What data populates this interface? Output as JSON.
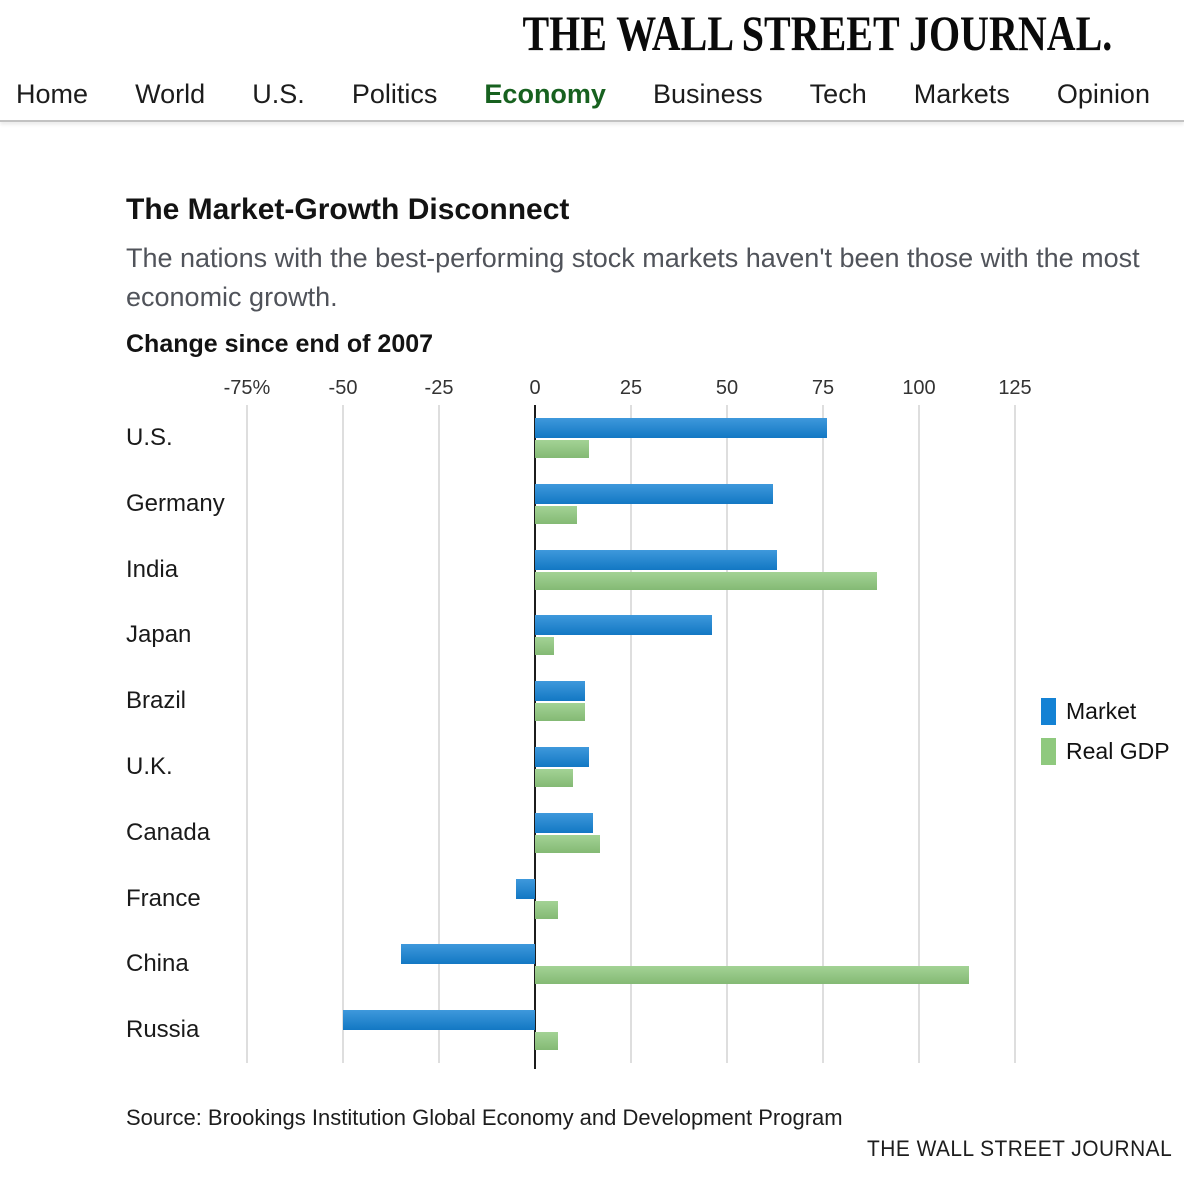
{
  "masthead": "THE WALL STREET JOURNAL.",
  "nav": {
    "items": [
      {
        "label": "Home",
        "active": false
      },
      {
        "label": "World",
        "active": false
      },
      {
        "label": "U.S.",
        "active": false
      },
      {
        "label": "Politics",
        "active": false
      },
      {
        "label": "Economy",
        "active": true
      },
      {
        "label": "Business",
        "active": false
      },
      {
        "label": "Tech",
        "active": false
      },
      {
        "label": "Markets",
        "active": false
      },
      {
        "label": "Opinion",
        "active": false
      }
    ],
    "active_color": "#17611f"
  },
  "chart": {
    "title": "The Market-Growth Disconnect",
    "subtitle": "The nations with the best-performing stock markets haven't been those with the most economic growth.",
    "axis_note": "Change since end of 2007",
    "source": "Source: Brookings Institution Global Economy and Development Program",
    "footer_brand": "THE WALL STREET JOURNAL"
  },
  "chart_data": {
    "type": "bar",
    "orientation": "horizontal",
    "title": "The Market-Growth Disconnect",
    "subtitle": "The nations with the best-performing stock markets haven't been those with the most economic growth.",
    "note": "Change since end of 2007",
    "unit": "percent",
    "categories": [
      "U.S.",
      "Germany",
      "India",
      "Japan",
      "Brazil",
      "U.K.",
      "Canada",
      "France",
      "China",
      "Russia"
    ],
    "series": [
      {
        "name": "Market",
        "color": "#1482d4",
        "values": [
          76,
          62,
          63,
          46,
          13,
          14,
          15,
          -5,
          -35,
          -50
        ]
      },
      {
        "name": "Real GDP",
        "color": "#8fc97e",
        "values": [
          14,
          11,
          89,
          5,
          13,
          10,
          17,
          6,
          113,
          6
        ]
      }
    ],
    "xlim": [
      -75,
      125
    ],
    "xticks": [
      -75,
      -50,
      -25,
      0,
      25,
      50,
      75,
      100,
      125
    ],
    "xtick_labels": [
      "-75%",
      "-50",
      "-25",
      "0",
      "25",
      "50",
      "75",
      "100",
      "125"
    ],
    "grid": true,
    "legend_position": "right",
    "source": "Source: Brookings Institution Global Economy and Development Program"
  }
}
